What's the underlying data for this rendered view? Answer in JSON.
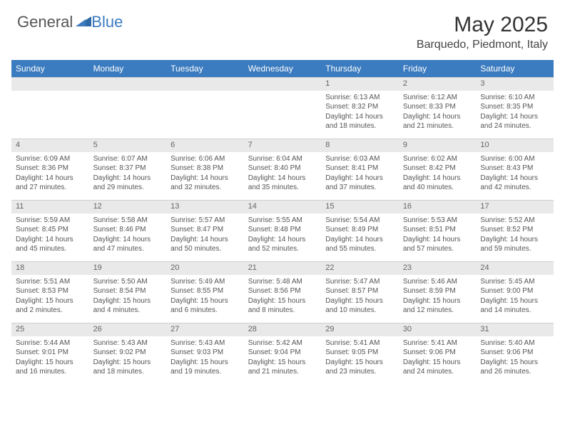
{
  "logo": {
    "general": "General",
    "blue": "Blue"
  },
  "title": "May 2025",
  "location": "Barquedo, Piedmont, Italy",
  "colors": {
    "header_bg": "#3b7bbf",
    "header_text": "#ffffff",
    "daynum_bg": "#e9e9e9",
    "text": "#555555",
    "logo_blue": "#3b7bbf"
  },
  "weekdays": [
    "Sunday",
    "Monday",
    "Tuesday",
    "Wednesday",
    "Thursday",
    "Friday",
    "Saturday"
  ],
  "weeks": [
    {
      "nums": [
        "",
        "",
        "",
        "",
        "1",
        "2",
        "3"
      ],
      "cells": [
        null,
        null,
        null,
        null,
        {
          "sunrise": "Sunrise: 6:13 AM",
          "sunset": "Sunset: 8:32 PM",
          "day1": "Daylight: 14 hours",
          "day2": "and 18 minutes."
        },
        {
          "sunrise": "Sunrise: 6:12 AM",
          "sunset": "Sunset: 8:33 PM",
          "day1": "Daylight: 14 hours",
          "day2": "and 21 minutes."
        },
        {
          "sunrise": "Sunrise: 6:10 AM",
          "sunset": "Sunset: 8:35 PM",
          "day1": "Daylight: 14 hours",
          "day2": "and 24 minutes."
        }
      ]
    },
    {
      "nums": [
        "4",
        "5",
        "6",
        "7",
        "8",
        "9",
        "10"
      ],
      "cells": [
        {
          "sunrise": "Sunrise: 6:09 AM",
          "sunset": "Sunset: 8:36 PM",
          "day1": "Daylight: 14 hours",
          "day2": "and 27 minutes."
        },
        {
          "sunrise": "Sunrise: 6:07 AM",
          "sunset": "Sunset: 8:37 PM",
          "day1": "Daylight: 14 hours",
          "day2": "and 29 minutes."
        },
        {
          "sunrise": "Sunrise: 6:06 AM",
          "sunset": "Sunset: 8:38 PM",
          "day1": "Daylight: 14 hours",
          "day2": "and 32 minutes."
        },
        {
          "sunrise": "Sunrise: 6:04 AM",
          "sunset": "Sunset: 8:40 PM",
          "day1": "Daylight: 14 hours",
          "day2": "and 35 minutes."
        },
        {
          "sunrise": "Sunrise: 6:03 AM",
          "sunset": "Sunset: 8:41 PM",
          "day1": "Daylight: 14 hours",
          "day2": "and 37 minutes."
        },
        {
          "sunrise": "Sunrise: 6:02 AM",
          "sunset": "Sunset: 8:42 PM",
          "day1": "Daylight: 14 hours",
          "day2": "and 40 minutes."
        },
        {
          "sunrise": "Sunrise: 6:00 AM",
          "sunset": "Sunset: 8:43 PM",
          "day1": "Daylight: 14 hours",
          "day2": "and 42 minutes."
        }
      ]
    },
    {
      "nums": [
        "11",
        "12",
        "13",
        "14",
        "15",
        "16",
        "17"
      ],
      "cells": [
        {
          "sunrise": "Sunrise: 5:59 AM",
          "sunset": "Sunset: 8:45 PM",
          "day1": "Daylight: 14 hours",
          "day2": "and 45 minutes."
        },
        {
          "sunrise": "Sunrise: 5:58 AM",
          "sunset": "Sunset: 8:46 PM",
          "day1": "Daylight: 14 hours",
          "day2": "and 47 minutes."
        },
        {
          "sunrise": "Sunrise: 5:57 AM",
          "sunset": "Sunset: 8:47 PM",
          "day1": "Daylight: 14 hours",
          "day2": "and 50 minutes."
        },
        {
          "sunrise": "Sunrise: 5:55 AM",
          "sunset": "Sunset: 8:48 PM",
          "day1": "Daylight: 14 hours",
          "day2": "and 52 minutes."
        },
        {
          "sunrise": "Sunrise: 5:54 AM",
          "sunset": "Sunset: 8:49 PM",
          "day1": "Daylight: 14 hours",
          "day2": "and 55 minutes."
        },
        {
          "sunrise": "Sunrise: 5:53 AM",
          "sunset": "Sunset: 8:51 PM",
          "day1": "Daylight: 14 hours",
          "day2": "and 57 minutes."
        },
        {
          "sunrise": "Sunrise: 5:52 AM",
          "sunset": "Sunset: 8:52 PM",
          "day1": "Daylight: 14 hours",
          "day2": "and 59 minutes."
        }
      ]
    },
    {
      "nums": [
        "18",
        "19",
        "20",
        "21",
        "22",
        "23",
        "24"
      ],
      "cells": [
        {
          "sunrise": "Sunrise: 5:51 AM",
          "sunset": "Sunset: 8:53 PM",
          "day1": "Daylight: 15 hours",
          "day2": "and 2 minutes."
        },
        {
          "sunrise": "Sunrise: 5:50 AM",
          "sunset": "Sunset: 8:54 PM",
          "day1": "Daylight: 15 hours",
          "day2": "and 4 minutes."
        },
        {
          "sunrise": "Sunrise: 5:49 AM",
          "sunset": "Sunset: 8:55 PM",
          "day1": "Daylight: 15 hours",
          "day2": "and 6 minutes."
        },
        {
          "sunrise": "Sunrise: 5:48 AM",
          "sunset": "Sunset: 8:56 PM",
          "day1": "Daylight: 15 hours",
          "day2": "and 8 minutes."
        },
        {
          "sunrise": "Sunrise: 5:47 AM",
          "sunset": "Sunset: 8:57 PM",
          "day1": "Daylight: 15 hours",
          "day2": "and 10 minutes."
        },
        {
          "sunrise": "Sunrise: 5:46 AM",
          "sunset": "Sunset: 8:59 PM",
          "day1": "Daylight: 15 hours",
          "day2": "and 12 minutes."
        },
        {
          "sunrise": "Sunrise: 5:45 AM",
          "sunset": "Sunset: 9:00 PM",
          "day1": "Daylight: 15 hours",
          "day2": "and 14 minutes."
        }
      ]
    },
    {
      "nums": [
        "25",
        "26",
        "27",
        "28",
        "29",
        "30",
        "31"
      ],
      "cells": [
        {
          "sunrise": "Sunrise: 5:44 AM",
          "sunset": "Sunset: 9:01 PM",
          "day1": "Daylight: 15 hours",
          "day2": "and 16 minutes."
        },
        {
          "sunrise": "Sunrise: 5:43 AM",
          "sunset": "Sunset: 9:02 PM",
          "day1": "Daylight: 15 hours",
          "day2": "and 18 minutes."
        },
        {
          "sunrise": "Sunrise: 5:43 AM",
          "sunset": "Sunset: 9:03 PM",
          "day1": "Daylight: 15 hours",
          "day2": "and 19 minutes."
        },
        {
          "sunrise": "Sunrise: 5:42 AM",
          "sunset": "Sunset: 9:04 PM",
          "day1": "Daylight: 15 hours",
          "day2": "and 21 minutes."
        },
        {
          "sunrise": "Sunrise: 5:41 AM",
          "sunset": "Sunset: 9:05 PM",
          "day1": "Daylight: 15 hours",
          "day2": "and 23 minutes."
        },
        {
          "sunrise": "Sunrise: 5:41 AM",
          "sunset": "Sunset: 9:06 PM",
          "day1": "Daylight: 15 hours",
          "day2": "and 24 minutes."
        },
        {
          "sunrise": "Sunrise: 5:40 AM",
          "sunset": "Sunset: 9:06 PM",
          "day1": "Daylight: 15 hours",
          "day2": "and 26 minutes."
        }
      ]
    }
  ]
}
